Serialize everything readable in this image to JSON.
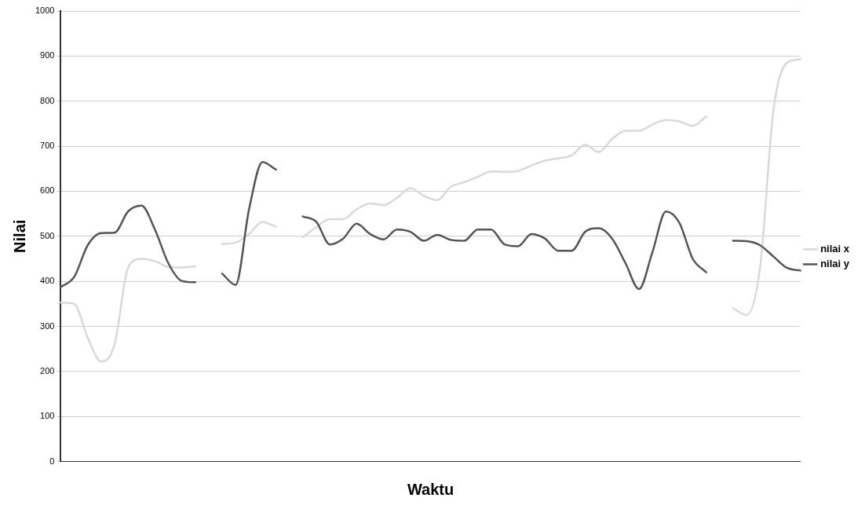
{
  "chart_data": {
    "type": "line",
    "xlabel": "Waktu",
    "ylabel": "Nilai",
    "categories": [
      null,
      null,
      null,
      null,
      null,
      null,
      null,
      null,
      null,
      null,
      null,
      null,
      null,
      null,
      null,
      null,
      null,
      null,
      null,
      null,
      null,
      null,
      null,
      null,
      null,
      null,
      null,
      null,
      null,
      null,
      null,
      null,
      null,
      null,
      null,
      null,
      null,
      null,
      null,
      null,
      null,
      null,
      null,
      null,
      null,
      null,
      null,
      null,
      null,
      null,
      null,
      null,
      null,
      null,
      null,
      null
    ],
    "series": [
      {
        "name": "nilai x",
        "color": "#d9d9d9",
        "values": [
          353,
          350,
          275,
          222,
          260,
          430,
          450,
          445,
          432,
          431,
          433,
          null,
          null,
          null,
          null,
          null,
          null,
          null,
          null,
          null,
          null,
          null,
          null,
          null,
          null,
          null,
          null,
          null,
          null,
          null,
          null,
          null,
          null,
          null,
          null,
          null,
          null,
          null,
          null,
          null,
          null,
          null,
          null,
          null,
          null,
          null,
          null,
          null,
          null,
          null,
          null,
          null,
          null,
          null,
          null,
          null
        ]
      },
      {
        "color": "#d9d9d9",
        "values": [
          null,
          null,
          null,
          null,
          null,
          null,
          null,
          null,
          null,
          null,
          null,
          null,
          483,
          486,
          505,
          532,
          521,
          null,
          null,
          null,
          null,
          null,
          null,
          null,
          null,
          null,
          null,
          null,
          null,
          null,
          null,
          null,
          null,
          null,
          null,
          null,
          null,
          null,
          null,
          null,
          null,
          null,
          null,
          null,
          null,
          null,
          null,
          null,
          null,
          null,
          null,
          null,
          null,
          null,
          null,
          null
        ]
      },
      {
        "color": "#d9d9d9",
        "values": [
          null,
          null,
          null,
          null,
          null,
          null,
          null,
          null,
          null,
          null,
          null,
          null,
          null,
          null,
          null,
          null,
          null,
          null,
          498,
          520,
          538,
          538,
          560,
          573,
          569,
          585,
          607,
          590,
          580,
          610,
          620,
          632,
          644,
          643,
          645,
          657,
          668,
          673,
          680,
          703,
          687,
          716,
          734,
          734,
          748,
          758,
          755,
          745,
          766,
          null,
          null,
          null,
          null,
          null,
          null,
          null
        ]
      },
      {
        "color": "#d9d9d9",
        "values": [
          null,
          null,
          null,
          null,
          null,
          null,
          null,
          null,
          null,
          null,
          null,
          null,
          null,
          null,
          null,
          null,
          null,
          null,
          null,
          null,
          null,
          null,
          null,
          null,
          null,
          null,
          null,
          null,
          null,
          null,
          null,
          null,
          null,
          null,
          null,
          null,
          null,
          null,
          null,
          null,
          null,
          null,
          null,
          null,
          null,
          null,
          null,
          null,
          null,
          null,
          340,
          325,
          430,
          780,
          885,
          893
        ]
      },
      {
        "name": "nilai y",
        "color": "#555555",
        "values": [
          387,
          410,
          480,
          507,
          508,
          555,
          568,
          515,
          440,
          401,
          398,
          null,
          null,
          null,
          null,
          null,
          null,
          null,
          null,
          null,
          null,
          null,
          null,
          null,
          null,
          null,
          null,
          null,
          null,
          null,
          null,
          null,
          null,
          null,
          null,
          null,
          null,
          null,
          null,
          null,
          null,
          null,
          null,
          null,
          null,
          null,
          null,
          null,
          null,
          null,
          null,
          null,
          null,
          null,
          null,
          null
        ]
      },
      {
        "color": "#555555",
        "values": [
          null,
          null,
          null,
          null,
          null,
          null,
          null,
          null,
          null,
          null,
          null,
          null,
          417,
          392,
          560,
          665,
          648,
          null,
          null,
          null,
          null,
          null,
          null,
          null,
          null,
          null,
          null,
          null,
          null,
          null,
          null,
          null,
          null,
          null,
          null,
          null,
          null,
          null,
          null,
          null,
          null,
          null,
          null,
          null,
          null,
          null,
          null,
          null,
          null,
          null,
          null,
          null,
          null,
          null,
          null,
          null
        ]
      },
      {
        "color": "#555555",
        "values": [
          null,
          null,
          null,
          null,
          null,
          null,
          null,
          null,
          null,
          null,
          null,
          null,
          null,
          null,
          null,
          null,
          null,
          null,
          544,
          532,
          482,
          495,
          528,
          505,
          493,
          515,
          510,
          490,
          503,
          492,
          490,
          515,
          515,
          482,
          478,
          505,
          495,
          468,
          468,
          510,
          518,
          495,
          440,
          383,
          465,
          555,
          530,
          450,
          420,
          null,
          null,
          null,
          null,
          null,
          null,
          null
        ]
      },
      {
        "color": "#555555",
        "values": [
          null,
          null,
          null,
          null,
          null,
          null,
          null,
          null,
          null,
          null,
          null,
          null,
          null,
          null,
          null,
          null,
          null,
          null,
          null,
          null,
          null,
          null,
          null,
          null,
          null,
          null,
          null,
          null,
          null,
          null,
          null,
          null,
          null,
          null,
          null,
          null,
          null,
          null,
          null,
          null,
          null,
          null,
          null,
          null,
          null,
          null,
          null,
          null,
          null,
          null,
          490,
          489,
          480,
          455,
          430,
          424
        ]
      }
    ],
    "ylim": [
      0,
      1000
    ],
    "yticks": [
      0,
      100,
      200,
      300,
      400,
      500,
      600,
      700,
      800,
      900,
      1000
    ],
    "grid": "y",
    "legend": "right",
    "marker": "none",
    "line_style": "solid"
  }
}
